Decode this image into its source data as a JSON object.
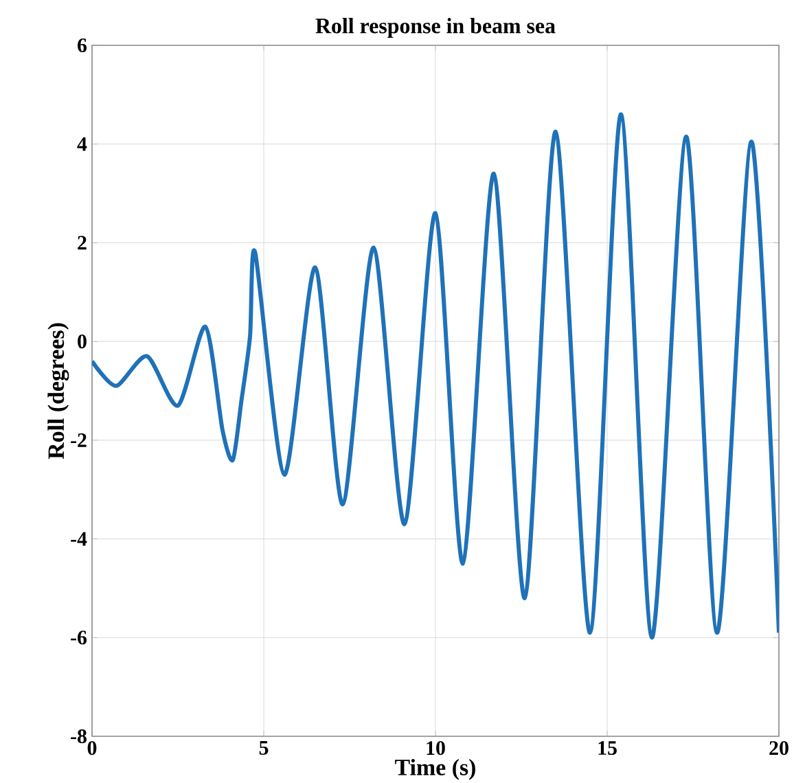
{
  "chart_data": {
    "type": "line",
    "title": "Roll response in beam sea",
    "xlabel": "Time (s)",
    "ylabel": "Roll (degrees)",
    "xlim": [
      0,
      20
    ],
    "ylim": [
      -8,
      6
    ],
    "xticks": [
      0,
      5,
      10,
      15,
      20
    ],
    "yticks": [
      -8,
      -6,
      -4,
      -2,
      0,
      2,
      4,
      6
    ],
    "grid": true,
    "series": [
      {
        "color": "#1f72b8",
        "line_style": "solid",
        "marker": "none",
        "x": [
          0,
          0.7,
          1.6,
          2.5,
          3.3,
          3.8,
          4.1,
          4.35,
          4.6,
          4.75,
          5.6,
          6.5,
          7.3,
          8.2,
          9.1,
          10.0,
          10.8,
          11.7,
          12.6,
          13.5,
          14.5,
          15.4,
          16.3,
          17.3,
          18.2,
          19.2,
          20
        ],
        "values": [
          -0.4,
          -0.9,
          -0.3,
          -1.3,
          0.3,
          -1.8,
          -2.4,
          -1.2,
          0.1,
          1.8,
          -2.7,
          1.5,
          -3.3,
          1.9,
          -3.7,
          2.6,
          -4.5,
          3.4,
          -5.2,
          4.25,
          -5.9,
          4.6,
          -6.0,
          4.15,
          -5.9,
          4.05,
          -5.9
        ]
      }
    ]
  }
}
